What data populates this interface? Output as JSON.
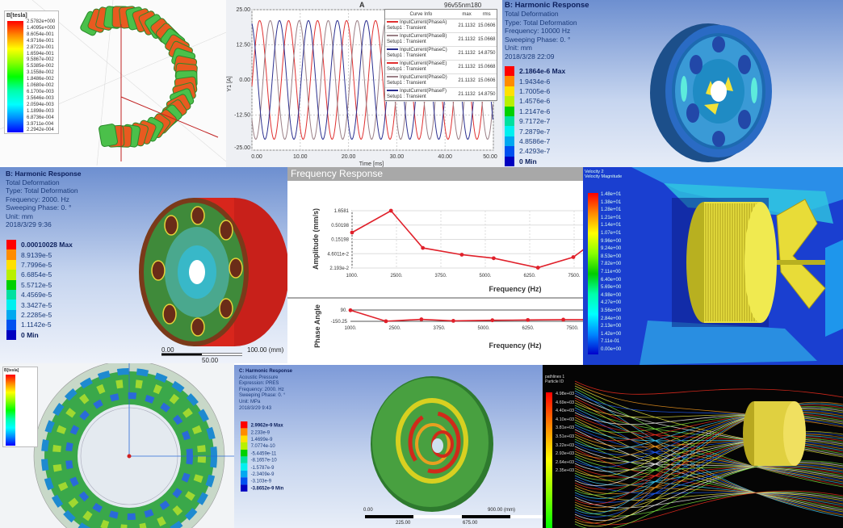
{
  "panel_magnetic": {
    "legend_title": "B[tesla]",
    "legend_values": [
      "2.5782e+000",
      "1.4095e+000",
      "8.6054e-001",
      "4.9716e-001",
      "2.8722e-001",
      "1.6594e-001",
      "9.5867e-002",
      "5.5385e-002",
      "3.1558e-002",
      "1.8486e-002",
      "1.0680e-002",
      "6.1700e-003",
      "3.5646e-003",
      "2.0594e-003",
      "1.1898e-003",
      "6.8736e-004",
      "3.9711e-004",
      "2.2942e-004"
    ]
  },
  "panel_current": {
    "title": "A",
    "project_label": "96v55nm180",
    "legend_headers": [
      "Curve Info",
      "max",
      "rms"
    ],
    "legend_rows": [
      {
        "name": "InputCurrent(PhaseA)",
        "setup": "Setup1 : Transient",
        "max": "21.1132",
        "rms": "15.0606",
        "color": "#e03030"
      },
      {
        "name": "InputCurrent(PhaseB)",
        "setup": "Setup1 : Transient",
        "max": "21.1132",
        "rms": "15.0668",
        "color": "#9a7f86"
      },
      {
        "name": "InputCurrent(PhaseC)",
        "setup": "Setup1 : Transient",
        "max": "21.1132",
        "rms": "14.8750",
        "color": "#2b2f8f"
      },
      {
        "name": "InputCurrent(PhaseE)",
        "setup": "Setup1 : Transient",
        "max": "21.1132",
        "rms": "15.0668",
        "color": "#e03030"
      },
      {
        "name": "InputCurrent(PhaseD)",
        "setup": "Setup1 : Transient",
        "max": "21.1132",
        "rms": "15.0606",
        "color": "#9a7f86"
      },
      {
        "name": "InputCurrent(PhaseF)",
        "setup": "Setup1 : Transient",
        "max": "21.1132",
        "rms": "14.8750",
        "color": "#2b2f8f"
      }
    ]
  },
  "panel_harmonic_10k": {
    "header": "B: Harmonic Response",
    "lines": [
      "Total Deformation",
      "Type: Total Deformation",
      "Frequency: 10000 Hz",
      "Sweeping Phase: 0. °",
      "Unit: mm",
      "2018/3/28 22:09"
    ],
    "legend_values": [
      "2.1864e-6 Max",
      "1.9434e-6",
      "1.7005e-6",
      "1.4576e-6",
      "1.2147e-6",
      "9.7172e-7",
      "7.2879e-7",
      "4.8586e-7",
      "2.4293e-7",
      "0 Min"
    ]
  },
  "panel_harmonic_2k": {
    "header": "B: Harmonic Response",
    "lines": [
      "Total Deformation",
      "Type: Total Deformation",
      "Frequency: 2000. Hz",
      "Sweeping Phase: 0. °",
      "Unit: mm",
      "2018/3/29 9:36"
    ],
    "legend_values": [
      "0.00010028 Max",
      "8.9139e-5",
      "7.7996e-5",
      "6.6854e-5",
      "5.5712e-5",
      "4.4569e-5",
      "3.3427e-5",
      "2.2285e-5",
      "1.1142e-5",
      "0 Min"
    ],
    "scale": {
      "start": "0.00",
      "end": "100.00 (mm)",
      "mid": "50.00"
    }
  },
  "panel_cfd": {
    "legend_title": [
      "Velocity 2",
      "Velocity Magnitude"
    ],
    "legend_values": [
      "1.48e+01",
      "1.38e+01",
      "1.28e+01",
      "1.21e+01",
      "1.14e+01",
      "1.07e+01",
      "9.96e+00",
      "9.24e+00",
      "8.53e+00",
      "7.82e+00",
      "7.11e+00",
      "6.40e+00",
      "5.69e+00",
      "4.98e+00",
      "4.27e+00",
      "3.56e+00",
      "2.84e+00",
      "2.13e+00",
      "1.42e+00",
      "7.11e-01",
      "0.00e+00"
    ]
  },
  "panel_ring": {
    "legend_title": "B[tesla]"
  },
  "panel_acoustic": {
    "header": "C: Harmonic Response",
    "lines": [
      "Acoustic Pressure",
      "Expression: PRES",
      "Frequency: 2000. Hz",
      "Sweeping Phase: 0. °",
      "Unit: MPa",
      "2018/3/29 9:43"
    ],
    "legend_values": [
      "2.9962e-9 Max",
      "2.233e-9",
      "1.4699e-9",
      "7.0774e-10",
      "-5.4459e-11",
      "-8.1657e-10",
      "-1.5787e-9",
      "-2.3409e-9",
      "-3.103e-9",
      "-3.8652e-9 Min"
    ],
    "scale": {
      "start": "0.00",
      "end": "900.00 (mm)",
      "q1": "225.00",
      "q3": "675.00"
    }
  },
  "panel_pathlines": {
    "legend_title": [
      "pathlines 1",
      "Particle ID"
    ],
    "legend_values": [
      "4.98e+03",
      "4.69e+03",
      "4.40e+03",
      "4.10e+03",
      "3.81e+03",
      "3.51e+03",
      "3.22e+03",
      "2.93e+03",
      "2.64e+03",
      "2.35e+03"
    ]
  },
  "chart_data": [
    {
      "type": "line",
      "title": "A",
      "xlabel": "Time [ms]",
      "ylabel": "Y1 [A]",
      "xlim": [
        0,
        50
      ],
      "ylim": [
        -25,
        25
      ],
      "xticks": [
        "0.00",
        "10.00",
        "20.00",
        "30.00",
        "40.00",
        "50.00"
      ],
      "yticks": [
        "25.00",
        "12.50",
        "0.00",
        "-12.50",
        "-25.00"
      ],
      "grid": true,
      "legend_placement": "top-right",
      "amplitude": 21.1132,
      "period_ms": 6,
      "series_first_peak_ms": [
        1.6,
        3.8,
        5.7
      ]
    },
    {
      "type": "line",
      "title": "Frequency Response",
      "xlabel": "Frequency (Hz)",
      "ylabel": "Amplitude (mm/s)",
      "yscale": "log",
      "xticks": [
        "1000.",
        "2500.",
        "3750.",
        "5000.",
        "6250.",
        "7500."
      ],
      "yticks": [
        "1.6581",
        "0.50198",
        "0.15198",
        "4.6011e-2",
        "2.193e-2"
      ],
      "x": [
        1000,
        2100,
        3000,
        4100,
        5000,
        6250,
        7250,
        7600
      ],
      "values": [
        0.32,
        1.6581,
        0.1,
        0.06,
        0.046,
        0.0225,
        0.05,
        0.1
      ],
      "color": "#e0202a"
    },
    {
      "type": "line",
      "xlabel": "Frequency (Hz)",
      "ylabel": "Phase Angle",
      "xticks": [
        "1000.",
        "2500.",
        "3750.",
        "5000.",
        "6250.",
        "7500."
      ],
      "yticks": [
        "90.",
        "-150.25"
      ],
      "x": [
        1000,
        2000,
        3000,
        3900,
        5000,
        6000,
        7000,
        7600
      ],
      "values": [
        85,
        -148,
        -108,
        -140,
        -128,
        -122,
        -115,
        -115
      ],
      "color": "#e0202a"
    }
  ]
}
